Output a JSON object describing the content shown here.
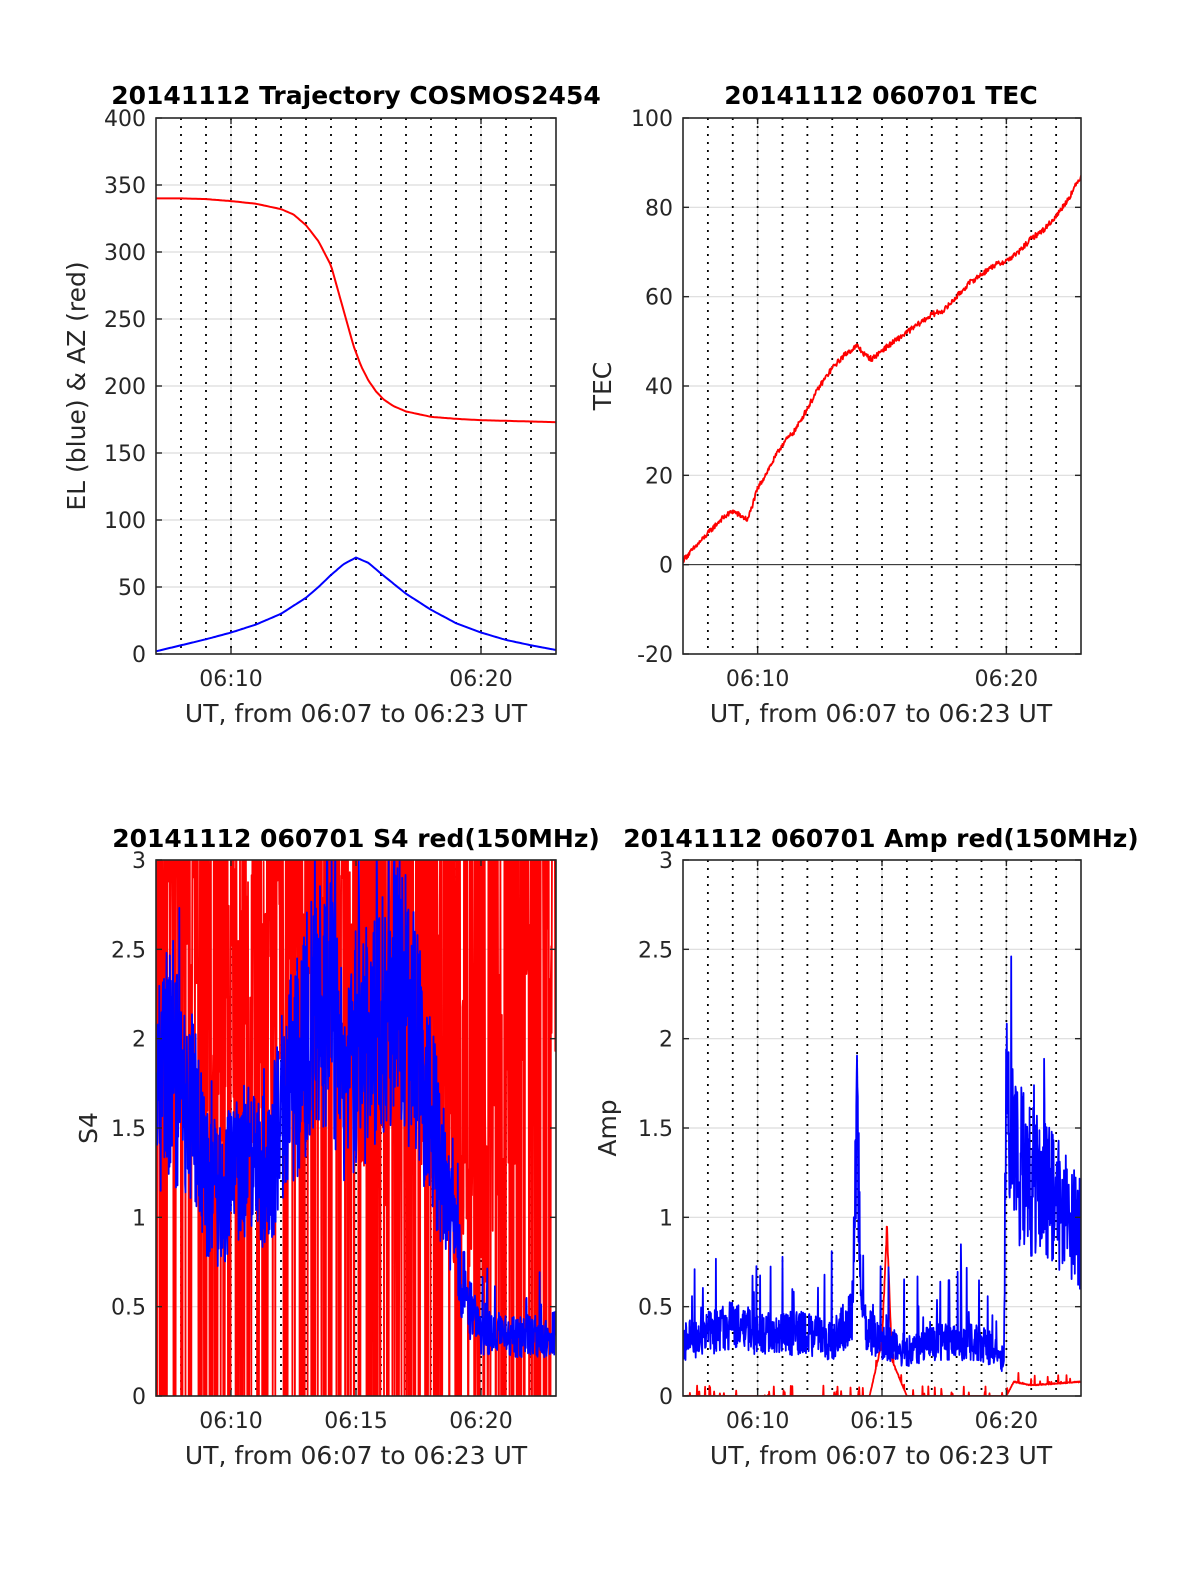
{
  "figure": {
    "background": "#ffffff",
    "axis_color": "#262626",
    "grid_color": "#dcdcdc"
  },
  "chart_data": [
    {
      "id": "trajectory",
      "type": "line",
      "title": "20141112 Trajectory COSMOS2454",
      "xlabel": "UT, from 06:07 to 06:23 UT",
      "ylabel": "EL (blue) & AZ (red)",
      "xlim": [
        7,
        23
      ],
      "ylim": [
        0,
        400
      ],
      "yticks": [
        0,
        50,
        100,
        150,
        200,
        250,
        300,
        350,
        400
      ],
      "xticks": [
        {
          "value": 10,
          "label": "06:10"
        },
        {
          "value": 20,
          "label": "06:20"
        }
      ],
      "x_unit_note": "minutes after 06:00 UT",
      "dotted_lines": [
        8.0,
        9.0,
        10.0,
        11.0,
        12.0,
        13.0,
        14.0,
        15.0,
        16.0,
        17.0,
        18.0,
        19.0,
        20.0,
        21.0,
        22.0
      ],
      "series": [
        {
          "color": "#ff0000",
          "noise": 0,
          "x": [
            7.0,
            8.0,
            9.0,
            10.0,
            11.0,
            12.0,
            12.5,
            13.0,
            13.5,
            14.0,
            14.3,
            14.6,
            14.9,
            15.2,
            15.5,
            15.8,
            16.1,
            16.5,
            17.0,
            17.5,
            18.0,
            19.0,
            20.0,
            21.0,
            22.0,
            23.0
          ],
          "y": [
            340,
            340,
            339.5,
            338,
            336,
            332,
            328,
            320,
            308,
            290,
            270,
            250,
            230,
            215,
            204,
            196,
            190,
            185,
            181,
            179,
            177,
            175.5,
            174.5,
            174,
            173.5,
            173
          ]
        },
        {
          "color": "#0000ff",
          "noise": 0,
          "x": [
            7.0,
            8.0,
            9.0,
            10.0,
            11.0,
            12.0,
            13.0,
            13.5,
            14.0,
            14.5,
            15.0,
            15.5,
            16.0,
            17.0,
            18.0,
            19.0,
            20.0,
            21.0,
            22.0,
            23.0
          ],
          "y": [
            2,
            6.5,
            11,
            16,
            22,
            30,
            42,
            50,
            59,
            67,
            72,
            68,
            60,
            45,
            33,
            23,
            16,
            10.5,
            6.5,
            3
          ]
        }
      ]
    },
    {
      "id": "tec",
      "type": "line",
      "title": "20141112 060701 TEC",
      "xlabel": "UT, from 06:07 to 06:23 UT",
      "ylabel": "TEC",
      "xlim": [
        7,
        23
      ],
      "ylim": [
        -20,
        100
      ],
      "yticks": [
        -20,
        0,
        20,
        40,
        60,
        80,
        100
      ],
      "xticks": [
        {
          "value": 10,
          "label": "06:10"
        },
        {
          "value": 20,
          "label": "06:20"
        }
      ],
      "dotted_lines": [
        8.0,
        9.0,
        10.0,
        11.0,
        12.0,
        13.0,
        14.0,
        15.0,
        16.0,
        17.0,
        18.0,
        19.0,
        20.0,
        21.0,
        22.0
      ],
      "series": [
        {
          "color": "#ff0000",
          "noise": 0.6,
          "x": [
            7.0,
            7.5,
            8.0,
            8.5,
            9.0,
            9.3,
            9.6,
            10.0,
            10.5,
            11.0,
            11.5,
            12.0,
            12.5,
            13.0,
            13.5,
            14.0,
            14.3,
            14.6,
            15.0,
            15.5,
            16.0,
            16.5,
            17.0,
            17.5,
            18.0,
            18.5,
            19.0,
            19.5,
            20.0,
            20.5,
            21.0,
            21.5,
            22.0,
            22.5,
            23.0
          ],
          "y": [
            1,
            4,
            7,
            10,
            12,
            11,
            10,
            17,
            22,
            27,
            30,
            35,
            40,
            44,
            47,
            49,
            47,
            46,
            48,
            50,
            52,
            54,
            56,
            57,
            60,
            63,
            65,
            67,
            68,
            70,
            73,
            75,
            78,
            82,
            87
          ]
        }
      ]
    },
    {
      "id": "s4",
      "type": "line",
      "title": "20141112 060701 S4 red(150MHz)",
      "xlabel": "UT, from 06:07 to 06:23 UT",
      "ylabel": "S4",
      "xlim": [
        7,
        23
      ],
      "ylim": [
        0,
        3
      ],
      "yticks": [
        0,
        0.5,
        1,
        1.5,
        2,
        2.5,
        3
      ],
      "xticks": [
        {
          "value": 10,
          "label": "06:10"
        },
        {
          "value": 15,
          "label": "06:15"
        },
        {
          "value": 20,
          "label": "06:20"
        }
      ],
      "dotted_lines": [
        8.0,
        9.0,
        10.0,
        11.0,
        12.0,
        13.0,
        14.0,
        15.0,
        16.0,
        17.0,
        18.0,
        19.0,
        20.0,
        21.0,
        22.0
      ],
      "series": [
        {
          "color": "#ff0000",
          "noise": 0.9,
          "x": [
            7.0,
            8.0,
            9.0,
            10.0,
            11.0,
            12.0,
            13.0,
            14.0,
            15.0,
            16.0,
            17.0,
            18.0,
            19.0,
            20.0,
            21.0,
            22.0,
            23.0
          ],
          "y": [
            2.6,
            2.7,
            2.5,
            2.2,
            2.0,
            2.4,
            2.6,
            2.5,
            2.3,
            1.8,
            2.2,
            2.0,
            1.6,
            1.2,
            1.8,
            2.6,
            2.8
          ]
        },
        {
          "color": "#0000ff",
          "noise": 0.35,
          "x": [
            7.0,
            7.5,
            8.0,
            8.5,
            9.0,
            9.5,
            10.0,
            10.5,
            11.0,
            11.5,
            12.0,
            12.5,
            13.0,
            13.5,
            14.0,
            14.5,
            15.0,
            15.5,
            16.0,
            16.5,
            17.0,
            17.5,
            18.0,
            18.5,
            19.0,
            19.5,
            20.0,
            20.5,
            21.0,
            21.5,
            22.0,
            22.5,
            23.0
          ],
          "y": [
            1.6,
            1.9,
            1.7,
            1.6,
            1.2,
            1.1,
            1.2,
            1.3,
            1.3,
            1.2,
            1.6,
            1.8,
            2.0,
            2.2,
            2.4,
            1.6,
            1.9,
            2.0,
            2.1,
            2.3,
            2.2,
            1.9,
            1.6,
            1.2,
            0.8,
            0.5,
            0.35,
            0.35,
            0.35,
            0.33,
            0.34,
            0.32,
            0.36
          ]
        }
      ]
    },
    {
      "id": "amp",
      "type": "line",
      "title": "20141112 060701 Amp red(150MHz)",
      "xlabel": "UT, from 06:07 to 06:23 UT",
      "ylabel": "Amp",
      "xlim": [
        7,
        23
      ],
      "ylim": [
        0,
        3
      ],
      "yticks": [
        0,
        0.5,
        1,
        1.5,
        2,
        2.5,
        3
      ],
      "xticks": [
        {
          "value": 10,
          "label": "06:10"
        },
        {
          "value": 15,
          "label": "06:15"
        },
        {
          "value": 20,
          "label": "06:20"
        }
      ],
      "dotted_lines": [
        8.0,
        9.0,
        10.0,
        11.0,
        12.0,
        13.0,
        14.0,
        15.0,
        16.0,
        17.0,
        18.0,
        19.0,
        20.0,
        21.0,
        22.0
      ],
      "series": [
        {
          "color": "#ff0000",
          "noise": 0.04,
          "x": [
            7.0,
            14.5,
            15.0,
            15.2,
            15.4,
            16.0,
            20.0,
            20.3,
            21.0,
            22.0,
            23.0
          ],
          "y": [
            0,
            0,
            0.3,
            0.95,
            0.2,
            0,
            0,
            0.08,
            0.06,
            0.07,
            0.08
          ]
        },
        {
          "color": "#0000ff",
          "noise": 0.35,
          "x": [
            7.0,
            8.0,
            9.0,
            10.0,
            11.0,
            12.0,
            13.0,
            13.8,
            14.0,
            14.2,
            15.0,
            16.0,
            17.0,
            18.0,
            19.0,
            19.9,
            20.0,
            20.5,
            21.0,
            21.5,
            22.0,
            22.5,
            23.0
          ],
          "y": [
            0.3,
            0.35,
            0.4,
            0.35,
            0.35,
            0.35,
            0.3,
            0.45,
            1.5,
            0.4,
            0.3,
            0.25,
            0.3,
            0.3,
            0.3,
            0.2,
            1.8,
            1.3,
            1.2,
            1.2,
            1.1,
            1.0,
            0.9
          ]
        }
      ]
    }
  ]
}
